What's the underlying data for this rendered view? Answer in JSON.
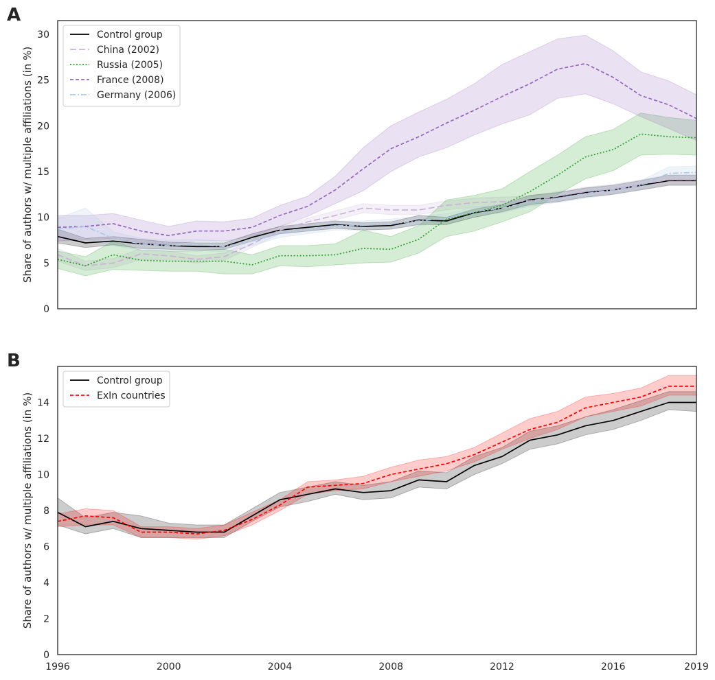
{
  "chart_data": [
    {
      "type": "line",
      "panel": "A",
      "title": "",
      "xlabel": "",
      "ylabel": "Share of authors w/ multiple affiliations (in %)",
      "xlim": [
        1996,
        2019
      ],
      "ylim": [
        0,
        31.5
      ],
      "yticks": [
        0,
        5,
        10,
        15,
        20,
        25,
        30
      ],
      "xticks": [],
      "grid": false,
      "legend_position": "top-left",
      "x": [
        1996,
        1997,
        1998,
        1999,
        2000,
        2001,
        2002,
        2003,
        2004,
        2005,
        2006,
        2007,
        2008,
        2009,
        2010,
        2011,
        2012,
        2013,
        2014,
        2015,
        2016,
        2017,
        2018,
        2019
      ],
      "series": [
        {
          "name": "Control group",
          "color": "#000000",
          "dash": "solid",
          "values": [
            7.9,
            7.2,
            7.4,
            7.1,
            6.9,
            6.8,
            6.8,
            7.8,
            8.6,
            8.9,
            9.2,
            9.0,
            9.1,
            9.7,
            9.6,
            10.5,
            11.0,
            11.9,
            12.2,
            12.7,
            13.0,
            13.5,
            14.0,
            14.0
          ],
          "lower": [
            7.2,
            6.7,
            7.0,
            6.6,
            6.5,
            6.4,
            6.5,
            7.4,
            8.2,
            8.5,
            8.8,
            8.6,
            8.7,
            9.2,
            9.2,
            10.0,
            10.6,
            11.4,
            11.7,
            12.2,
            12.5,
            13.0,
            13.5,
            13.5
          ],
          "upper": [
            8.7,
            7.7,
            7.9,
            7.6,
            7.3,
            7.2,
            7.2,
            8.2,
            9.0,
            9.3,
            9.6,
            9.4,
            9.5,
            10.2,
            10.0,
            10.9,
            11.4,
            12.4,
            12.7,
            13.2,
            13.5,
            14.0,
            14.6,
            14.6
          ]
        },
        {
          "name": "China (2002)",
          "color": "#c9b2d6",
          "dash": "long",
          "values": [
            5.9,
            4.7,
            5.0,
            6.0,
            5.8,
            5.4,
            5.7,
            7.1,
            8.6,
            9.5,
            10.2,
            11.0,
            10.8,
            10.8,
            11.3,
            11.6,
            11.7,
            11.8,
            12.3,
            12.8,
            13.1,
            13.6,
            14.1,
            14.1
          ],
          "lower": [
            5.2,
            4.2,
            4.5,
            5.4,
            5.3,
            5.0,
            5.3,
            6.7,
            8.2,
            9.1,
            9.7,
            10.5,
            10.3,
            10.3,
            10.8,
            11.1,
            11.2,
            11.3,
            11.8,
            12.3,
            12.6,
            13.1,
            13.6,
            13.6
          ],
          "upper": [
            6.6,
            5.2,
            5.5,
            6.6,
            6.3,
            5.8,
            6.1,
            7.5,
            9.0,
            9.9,
            10.7,
            11.5,
            11.3,
            11.3,
            11.8,
            12.1,
            12.2,
            12.3,
            12.8,
            13.3,
            13.6,
            14.1,
            14.6,
            14.6
          ]
        },
        {
          "name": "Russia (2005)",
          "color": "#2ca02c",
          "dash": "dotted",
          "values": [
            5.4,
            4.7,
            5.9,
            5.3,
            5.2,
            5.2,
            5.2,
            4.8,
            5.8,
            5.8,
            5.9,
            6.6,
            6.5,
            7.6,
            9.8,
            10.5,
            11.3,
            12.8,
            14.6,
            16.6,
            17.4,
            19.1,
            18.8,
            18.7
          ],
          "lower": [
            4.4,
            3.6,
            4.3,
            4.2,
            4.1,
            4.1,
            3.8,
            3.8,
            4.7,
            4.6,
            4.8,
            5.0,
            5.1,
            6.1,
            7.9,
            8.5,
            9.5,
            10.6,
            12.5,
            14.2,
            15.1,
            16.8,
            16.9,
            16.8
          ],
          "upper": [
            6.3,
            5.7,
            7.4,
            6.4,
            6.3,
            6.3,
            6.5,
            5.9,
            6.9,
            6.9,
            7.1,
            8.6,
            7.9,
            9.1,
            11.9,
            12.4,
            13.1,
            15.0,
            16.8,
            18.8,
            19.6,
            21.4,
            20.9,
            20.6
          ]
        },
        {
          "name": "France (2008)",
          "color": "#9467bd",
          "dash": "dashed",
          "values": [
            8.9,
            9.0,
            9.3,
            8.5,
            8.0,
            8.5,
            8.5,
            8.9,
            10.2,
            11.2,
            13.0,
            15.3,
            17.5,
            18.8,
            20.3,
            21.7,
            23.2,
            24.6,
            26.2,
            26.8,
            25.3,
            23.3,
            22.3,
            20.8
          ],
          "lower": [
            7.4,
            7.5,
            7.7,
            7.2,
            7.0,
            7.4,
            7.4,
            7.9,
            9.0,
            10.1,
            11.5,
            12.9,
            15.0,
            16.6,
            17.6,
            19.0,
            20.2,
            21.2,
            23.0,
            23.5,
            22.4,
            21.0,
            19.7,
            18.4
          ],
          "upper": [
            10.2,
            10.2,
            10.4,
            9.7,
            9.0,
            9.6,
            9.5,
            9.9,
            11.3,
            12.3,
            14.5,
            17.6,
            20.0,
            21.5,
            22.9,
            24.6,
            26.7,
            28.1,
            29.5,
            29.9,
            28.2,
            25.9,
            24.9,
            23.4
          ]
        },
        {
          "name": "Germany (2006)",
          "color": "#aec7e8",
          "dash": "dashdot",
          "values": [
            8.7,
            9.0,
            7.7,
            7.1,
            6.9,
            7.0,
            6.8,
            7.4,
            8.3,
            8.7,
            9.1,
            9.1,
            9.3,
            9.6,
            9.9,
            10.6,
            11.0,
            11.7,
            12.1,
            12.6,
            13.0,
            13.5,
            14.8,
            14.9
          ],
          "lower": [
            7.8,
            7.6,
            6.9,
            6.4,
            6.3,
            6.4,
            6.2,
            6.9,
            7.8,
            8.2,
            8.6,
            8.6,
            8.8,
            9.1,
            9.4,
            10.1,
            10.5,
            11.2,
            11.6,
            12.1,
            12.5,
            13.0,
            14.2,
            14.3
          ],
          "upper": [
            9.9,
            11.0,
            8.4,
            7.7,
            7.5,
            7.6,
            7.4,
            7.9,
            8.8,
            9.2,
            9.6,
            9.6,
            9.8,
            10.1,
            10.4,
            11.1,
            11.5,
            12.2,
            12.6,
            13.1,
            13.5,
            14.0,
            15.5,
            15.6
          ]
        }
      ]
    },
    {
      "type": "line",
      "panel": "B",
      "title": "",
      "xlabel": "",
      "ylabel": "Share of authors w/ multiple affiliations (in %)",
      "xlim": [
        1996,
        2019
      ],
      "ylim": [
        0,
        16
      ],
      "yticks": [
        0,
        2,
        4,
        6,
        8,
        10,
        12,
        14
      ],
      "xticks": [
        1996,
        2000,
        2004,
        2008,
        2012,
        2016,
        2019
      ],
      "grid": false,
      "legend_position": "top-left",
      "x": [
        1996,
        1997,
        1998,
        1999,
        2000,
        2001,
        2002,
        2003,
        2004,
        2005,
        2006,
        2007,
        2008,
        2009,
        2010,
        2011,
        2012,
        2013,
        2014,
        2015,
        2016,
        2017,
        2018,
        2019
      ],
      "series": [
        {
          "name": "Control group",
          "color": "#000000",
          "dash": "solid",
          "values": [
            7.9,
            7.1,
            7.4,
            7.0,
            6.9,
            6.8,
            6.8,
            7.7,
            8.6,
            8.9,
            9.2,
            9.0,
            9.1,
            9.7,
            9.6,
            10.5,
            11.0,
            11.9,
            12.2,
            12.7,
            13.0,
            13.5,
            14.0,
            14.0
          ],
          "lower": [
            7.2,
            6.7,
            7.0,
            6.5,
            6.5,
            6.5,
            6.5,
            7.4,
            8.2,
            8.5,
            8.9,
            8.6,
            8.7,
            9.3,
            9.2,
            10.0,
            10.6,
            11.4,
            11.7,
            12.2,
            12.5,
            13.0,
            13.6,
            13.5
          ],
          "upper": [
            8.7,
            7.6,
            7.9,
            7.7,
            7.3,
            7.2,
            7.2,
            8.1,
            9.0,
            9.3,
            9.6,
            9.4,
            9.6,
            10.2,
            10.1,
            11.0,
            11.5,
            12.4,
            12.7,
            13.2,
            13.6,
            14.1,
            14.6,
            14.6
          ]
        },
        {
          "name": "ExIn countries",
          "color": "#ff0000",
          "dash": "dashed",
          "values": [
            7.4,
            7.7,
            7.6,
            6.8,
            6.8,
            6.7,
            6.9,
            7.5,
            8.3,
            9.3,
            9.4,
            9.5,
            10.0,
            10.3,
            10.6,
            11.1,
            11.8,
            12.5,
            12.9,
            13.7,
            14.0,
            14.3,
            14.9,
            14.9
          ],
          "lower": [
            7.1,
            7.2,
            7.2,
            6.5,
            6.5,
            6.4,
            6.6,
            7.2,
            8.0,
            8.9,
            9.1,
            9.2,
            9.6,
            9.9,
            10.2,
            10.7,
            11.4,
            12.0,
            12.5,
            13.2,
            13.5,
            13.8,
            14.4,
            14.4
          ],
          "upper": [
            7.8,
            8.1,
            8.0,
            7.1,
            7.1,
            7.0,
            7.2,
            7.9,
            8.6,
            9.6,
            9.7,
            9.9,
            10.4,
            10.8,
            11.0,
            11.5,
            12.3,
            13.1,
            13.5,
            14.3,
            14.5,
            14.8,
            15.5,
            15.5
          ]
        }
      ]
    }
  ],
  "panels": {
    "a_letter": "A",
    "b_letter": "B"
  }
}
